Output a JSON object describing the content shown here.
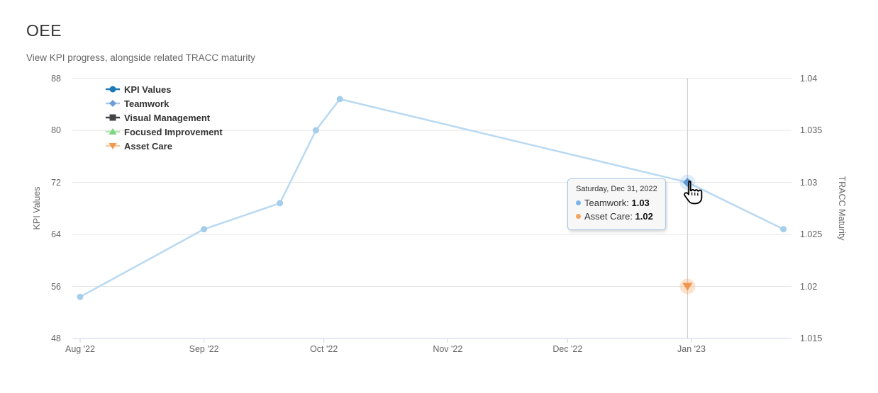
{
  "header": {
    "title": "OEE",
    "subtitle": "View KPI progress, alongside related TRACC maturity"
  },
  "tooltip": {
    "header": "Saturday, Dec 31, 2022",
    "rows": [
      {
        "label": "Teamwork",
        "value": "1.03",
        "color": "#7cb5ec"
      },
      {
        "label": "Asset Care",
        "value": "1.02",
        "color": "#f7a35c"
      }
    ]
  },
  "chart_data": {
    "type": "line",
    "title": "OEE",
    "subtitle": "View KPI progress, alongside related TRACC maturity",
    "grid": true,
    "legend_position": "top-left-inside",
    "colors": {
      "gridline": "#e6e6e6",
      "axis_line": "#ccd6eb",
      "crosshair": "#cccccc",
      "tick_label": "#666666"
    },
    "x_axis": {
      "type": "datetime",
      "ticks": [
        {
          "label": "Aug '22",
          "days": 0
        },
        {
          "label": "Sep '22",
          "days": 31
        },
        {
          "label": "Oct '22",
          "days": 61
        },
        {
          "label": "Nov '22",
          "days": 92
        },
        {
          "label": "Dec '22",
          "days": 122
        },
        {
          "label": "Jan '23",
          "days": 153
        }
      ]
    },
    "y_axis_left": {
      "title": "KPI Values",
      "min": 48,
      "max": 88,
      "ticks": [
        {
          "label": "88",
          "value": 88
        },
        {
          "label": "80",
          "value": 80
        },
        {
          "label": "72",
          "value": 72
        },
        {
          "label": "64",
          "value": 64
        },
        {
          "label": "56",
          "value": 56
        },
        {
          "label": "48",
          "value": 48
        }
      ]
    },
    "y_axis_right": {
      "title": "TRACC Maturity",
      "min": 1.015,
      "max": 1.04,
      "ticks": [
        {
          "label": "1.04",
          "value": 1.04
        },
        {
          "label": "1.035",
          "value": 1.035
        },
        {
          "label": "1.03",
          "value": 1.03
        },
        {
          "label": "1.025",
          "value": 1.025
        },
        {
          "label": "1.02",
          "value": 1.02
        },
        {
          "label": "1.015",
          "value": 1.015
        }
      ]
    },
    "legend": [
      {
        "label": "KPI Values",
        "color": "#1e78b5",
        "line_color": "#1e78b5",
        "symbol": "circle"
      },
      {
        "label": "Teamwork",
        "color": "#6d9eda",
        "line_color": "#a9c9ec",
        "symbol": "diamond"
      },
      {
        "label": "Visual Management",
        "color": "#434348",
        "line_color": "#434348",
        "symbol": "square"
      },
      {
        "label": "Focused Improvement",
        "color": "#7ed67e",
        "line_color": "#b2e8ac",
        "symbol": "triangle-up"
      },
      {
        "label": "Asset Care",
        "color": "#f2994e",
        "line_color": "#f8c9a0",
        "symbol": "triangle-down"
      }
    ],
    "hover": {
      "days": 152,
      "date": "Saturday, Dec 31, 2022"
    },
    "series": [
      {
        "name": "Teamwork",
        "axis": "right",
        "symbol": "diamond",
        "line_color": "#b9d9f2",
        "marker_color": "#a5cdec",
        "hover_color": "#5e97d0",
        "halo_color": "rgba(124,181,236,0.25)",
        "hover_days": 152,
        "points": [
          {
            "date": "Aug 1, 2022",
            "days": 0,
            "value": 1.019
          },
          {
            "date": "Sep 1, 2022",
            "days": 31,
            "value": 1.0255
          },
          {
            "date": "Sep 20, 2022",
            "days": 50,
            "value": 1.028
          },
          {
            "date": "Sep 29, 2022",
            "days": 59,
            "value": 1.035
          },
          {
            "date": "Oct 5, 2022",
            "days": 65,
            "value": 1.038
          },
          {
            "date": "Dec 31, 2022",
            "days": 152,
            "value": 1.03
          },
          {
            "date": "Jan 24, 2023",
            "days": 176,
            "value": 1.0255
          }
        ]
      },
      {
        "name": "Asset Care",
        "axis": "right",
        "symbol": "triangle-down",
        "line_color": null,
        "marker_color": "#f2964b",
        "hover_color": "#f2964b",
        "halo_color": "rgba(247,163,92,0.3)",
        "hover_days": 152,
        "points": [
          {
            "date": "Dec 31, 2022",
            "days": 152,
            "value": 1.02
          }
        ]
      }
    ]
  }
}
